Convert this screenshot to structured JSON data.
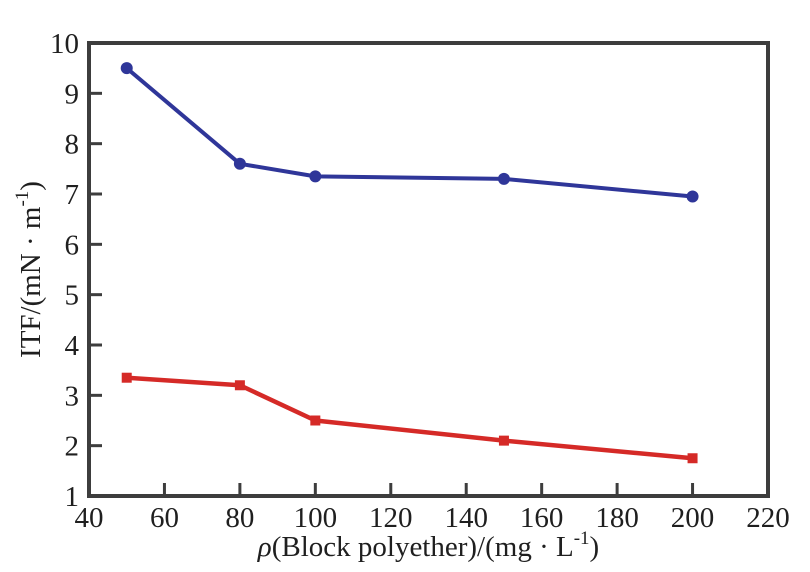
{
  "figure": {
    "background": "#ffffff",
    "frame_color": "#3d3d3d",
    "tick_color": "#3d3d3d",
    "label_color": "#1f1f1f"
  },
  "chart_data": {
    "type": "line",
    "title": "",
    "xlabel": "ρ(Block polyether)/(mg · L⁻¹)",
    "ylabel": "ITF/(mN · m⁻¹)",
    "xlabel_parts": [
      {
        "text": "ρ",
        "style": "italic"
      },
      {
        "text": "(Block polyether)/(mg · L"
      },
      {
        "text": "-1",
        "style": "sup"
      },
      {
        "text": ")"
      }
    ],
    "ylabel_parts": [
      {
        "text": "ITF/(mN · m"
      },
      {
        "text": "-1",
        "style": "sup"
      },
      {
        "text": ")"
      }
    ],
    "xlim": [
      40,
      220
    ],
    "ylim": [
      1,
      10
    ],
    "x_ticks": [
      40,
      60,
      80,
      100,
      120,
      140,
      160,
      180,
      200,
      220
    ],
    "y_ticks": [
      1,
      2,
      3,
      4,
      5,
      6,
      7,
      8,
      9,
      10
    ],
    "grid": false,
    "legend": "none",
    "series": [
      {
        "name": "blue-circles",
        "color": "#2f3699",
        "marker": "circle",
        "line_width": 4,
        "x": [
          50,
          80,
          100,
          150,
          200
        ],
        "y": [
          9.5,
          7.6,
          7.35,
          7.3,
          6.95
        ]
      },
      {
        "name": "red-squares",
        "color": "#d52a27",
        "marker": "square",
        "line_width": 4.5,
        "x": [
          50,
          80,
          100,
          150,
          200
        ],
        "y": [
          3.35,
          3.2,
          2.5,
          2.1,
          1.75
        ]
      }
    ]
  }
}
